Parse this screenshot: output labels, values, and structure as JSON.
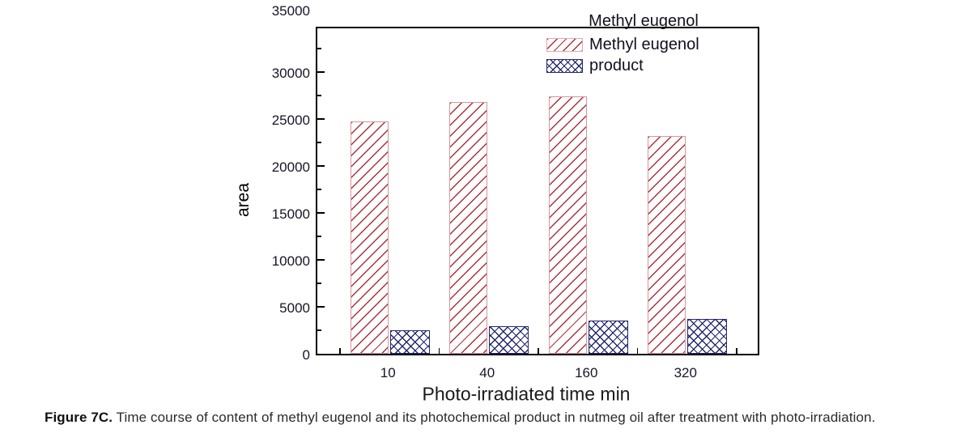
{
  "figure": {
    "caption": {
      "label": "Figure 7C.",
      "text": " Time course of content of methyl eugenol and its photochemical product in nutmeg oil after treatment with photo-irradiation."
    }
  },
  "chart_data": {
    "type": "bar",
    "categories": [
      "10",
      "40",
      "160",
      "320"
    ],
    "series": [
      {
        "name": "Methyl eugenol",
        "values": [
          24700,
          26800,
          27400,
          23200
        ],
        "hatch": "diagonal-red",
        "color": "#a8303d",
        "edge_color": "#d9959b"
      },
      {
        "name": "product",
        "values": [
          2500,
          2900,
          3500,
          3700
        ],
        "hatch": "crosshatch-navy",
        "color": "#23266e",
        "edge_color": "#23266e"
      }
    ],
    "xlabel": "Photo-irradiated time min",
    "ylabel": "area",
    "ylim": [
      0,
      35000
    ],
    "yticks": [
      0,
      5000,
      10000,
      15000,
      20000,
      25000,
      30000,
      35000
    ],
    "ytick_minor_step": 2500,
    "grid": false,
    "frame": true,
    "legend": {
      "title": "Methyl eugenol",
      "entries": [
        "Methyl eugenol",
        "product"
      ],
      "position": "top-right-inside"
    }
  }
}
